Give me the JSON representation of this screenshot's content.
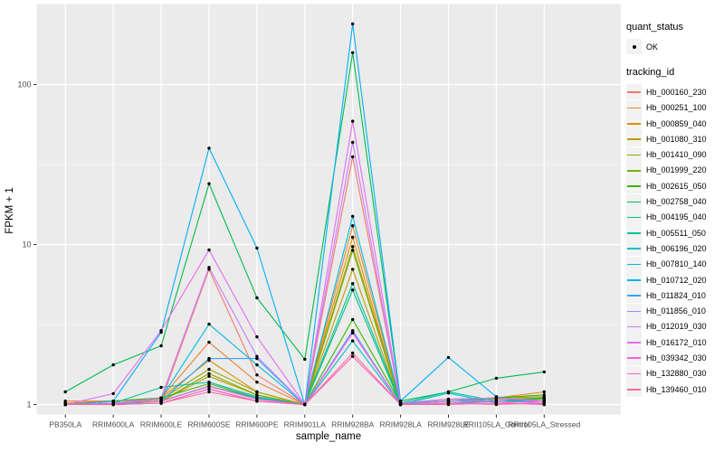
{
  "axes": {
    "xlabel": "sample_name",
    "ylabel": "FPKM + 1"
  },
  "legend": {
    "quant_status_title": "quant_status",
    "quant_status_items": [
      {
        "label": "OK",
        "marker": "point-icon"
      }
    ],
    "tracking_title": "tracking_id"
  },
  "style": {
    "panel_bg": "#EBEBEB",
    "grid_color": "#FFFFFF",
    "axis_text_color": "#4D4D4D",
    "tick_color": "#333333",
    "point_color": "#000000",
    "legend_key_bg": "#F2F2F2"
  },
  "chart_data": {
    "type": "line",
    "title": "",
    "xlabel": "sample_name",
    "ylabel": "FPKM + 1",
    "y_scale": "log10",
    "ylim": [
      1,
      300
    ],
    "yticks": [
      1,
      10,
      100
    ],
    "yticks_minor": [
      3.162,
      31.62
    ],
    "grid": true,
    "legend_position": "right",
    "point_marker": "black dot (quant_status OK)",
    "categories": [
      "PB350LA",
      "RRIM600LA",
      "RRIM600LE",
      "RRIM600SE",
      "RRIM600PE",
      "RRIM901LA",
      "RRIM928BA",
      "RRIM928LA",
      "RRIM928LE",
      "RRII105LA_Control",
      "RRII105LA_Stressed"
    ],
    "series": [
      {
        "name": "Hb_000160_230",
        "color": "#F8766D",
        "values": [
          1.0,
          1.02,
          1.05,
          7.0,
          1.53,
          1.0,
          35.3,
          1.02,
          1.05,
          1.05,
          1.1
        ]
      },
      {
        "name": "Hb_000251_100",
        "color": "#EA8331",
        "values": [
          1.05,
          1.05,
          1.1,
          2.45,
          1.38,
          1.0,
          13.1,
          1.02,
          1.05,
          1.1,
          1.2
        ]
      },
      {
        "name": "Hb_000859_040",
        "color": "#D89000",
        "values": [
          1.02,
          1.05,
          1.1,
          1.89,
          1.2,
          1.0,
          11.1,
          1.0,
          1.02,
          1.05,
          1.1
        ]
      },
      {
        "name": "Hb_001080_310",
        "color": "#C09B00",
        "values": [
          1.0,
          1.02,
          1.05,
          1.5,
          1.15,
          1.0,
          7.0,
          1.0,
          1.05,
          1.08,
          1.1
        ]
      },
      {
        "name": "Hb_001410_090",
        "color": "#A3A500",
        "values": [
          1.0,
          1.02,
          1.08,
          1.66,
          1.2,
          1.0,
          9.7,
          1.02,
          1.05,
          1.1,
          1.12
        ]
      },
      {
        "name": "Hb_001999_220",
        "color": "#7CAE00",
        "values": [
          1.0,
          1.0,
          1.05,
          1.56,
          1.15,
          1.0,
          9.2,
          1.0,
          1.02,
          1.05,
          1.08
        ]
      },
      {
        "name": "Hb_002615_050",
        "color": "#39B600",
        "values": [
          1.0,
          1.05,
          1.1,
          1.35,
          1.1,
          1.0,
          3.4,
          1.02,
          1.08,
          1.1,
          1.15
        ]
      },
      {
        "name": "Hb_002758_040",
        "color": "#00BB4E",
        "values": [
          1.2,
          1.77,
          2.33,
          24.0,
          4.64,
          1.92,
          158,
          1.05,
          1.2,
          1.46,
          1.6
        ]
      },
      {
        "name": "Hb_004195_040",
        "color": "#00BF7D",
        "values": [
          1.0,
          1.02,
          1.05,
          1.3,
          1.1,
          1.0,
          5.2,
          1.0,
          1.05,
          1.05,
          1.1
        ]
      },
      {
        "name": "Hb_005511_050",
        "color": "#00C1A3",
        "values": [
          1.0,
          1.02,
          1.28,
          1.38,
          1.12,
          1.0,
          5.7,
          1.02,
          1.2,
          1.05,
          1.05
        ]
      },
      {
        "name": "Hb_006196_020",
        "color": "#00BFC4",
        "values": [
          1.0,
          1.0,
          1.05,
          1.3,
          1.1,
          1.0,
          2.5,
          1.0,
          1.18,
          1.02,
          1.05
        ]
      },
      {
        "name": "Hb_007810_140",
        "color": "#00BAE0",
        "values": [
          1.0,
          1.02,
          1.1,
          3.18,
          1.77,
          1.0,
          15.0,
          1.02,
          1.05,
          1.1,
          1.05
        ]
      },
      {
        "name": "Hb_010712_020",
        "color": "#00B0F6",
        "values": [
          1.0,
          1.05,
          2.83,
          40.0,
          9.5,
          1.0,
          239,
          1.05,
          1.97,
          1.12,
          1.0
        ]
      },
      {
        "name": "Hb_011824_010",
        "color": "#35A2FF",
        "values": [
          1.0,
          1.02,
          1.05,
          1.94,
          1.94,
          1.0,
          2.9,
          1.0,
          1.02,
          1.05,
          1.02
        ]
      },
      {
        "name": "Hb_011856_010",
        "color": "#9590FF",
        "values": [
          1.0,
          1.0,
          1.02,
          1.25,
          1.05,
          1.0,
          2.85,
          1.0,
          1.02,
          1.02,
          1.0
        ]
      },
      {
        "name": "Hb_012019_030",
        "color": "#C77CFF",
        "values": [
          1.0,
          1.02,
          1.1,
          7.2,
          2.0,
          1.0,
          43.5,
          1.0,
          1.05,
          1.05,
          1.02
        ]
      },
      {
        "name": "Hb_016172_010",
        "color": "#E76BF3",
        "values": [
          1.0,
          1.17,
          2.9,
          9.25,
          2.65,
          1.0,
          59.0,
          1.02,
          1.08,
          1.1,
          1.05
        ]
      },
      {
        "name": "Hb_039342_030",
        "color": "#FA62DB",
        "values": [
          1.0,
          1.02,
          1.05,
          1.3,
          1.08,
          1.0,
          2.8,
          1.0,
          1.02,
          1.02,
          1.05
        ]
      },
      {
        "name": "Hb_132880_030",
        "color": "#FF62BC",
        "values": [
          1.0,
          1.0,
          1.02,
          1.25,
          1.05,
          1.0,
          2.0,
          1.0,
          1.0,
          1.02,
          1.0
        ]
      },
      {
        "name": "Hb_139460_010",
        "color": "#FF6A98",
        "values": [
          1.0,
          1.0,
          1.02,
          1.2,
          1.05,
          1.0,
          2.1,
          1.0,
          1.02,
          1.0,
          1.02
        ]
      }
    ]
  }
}
